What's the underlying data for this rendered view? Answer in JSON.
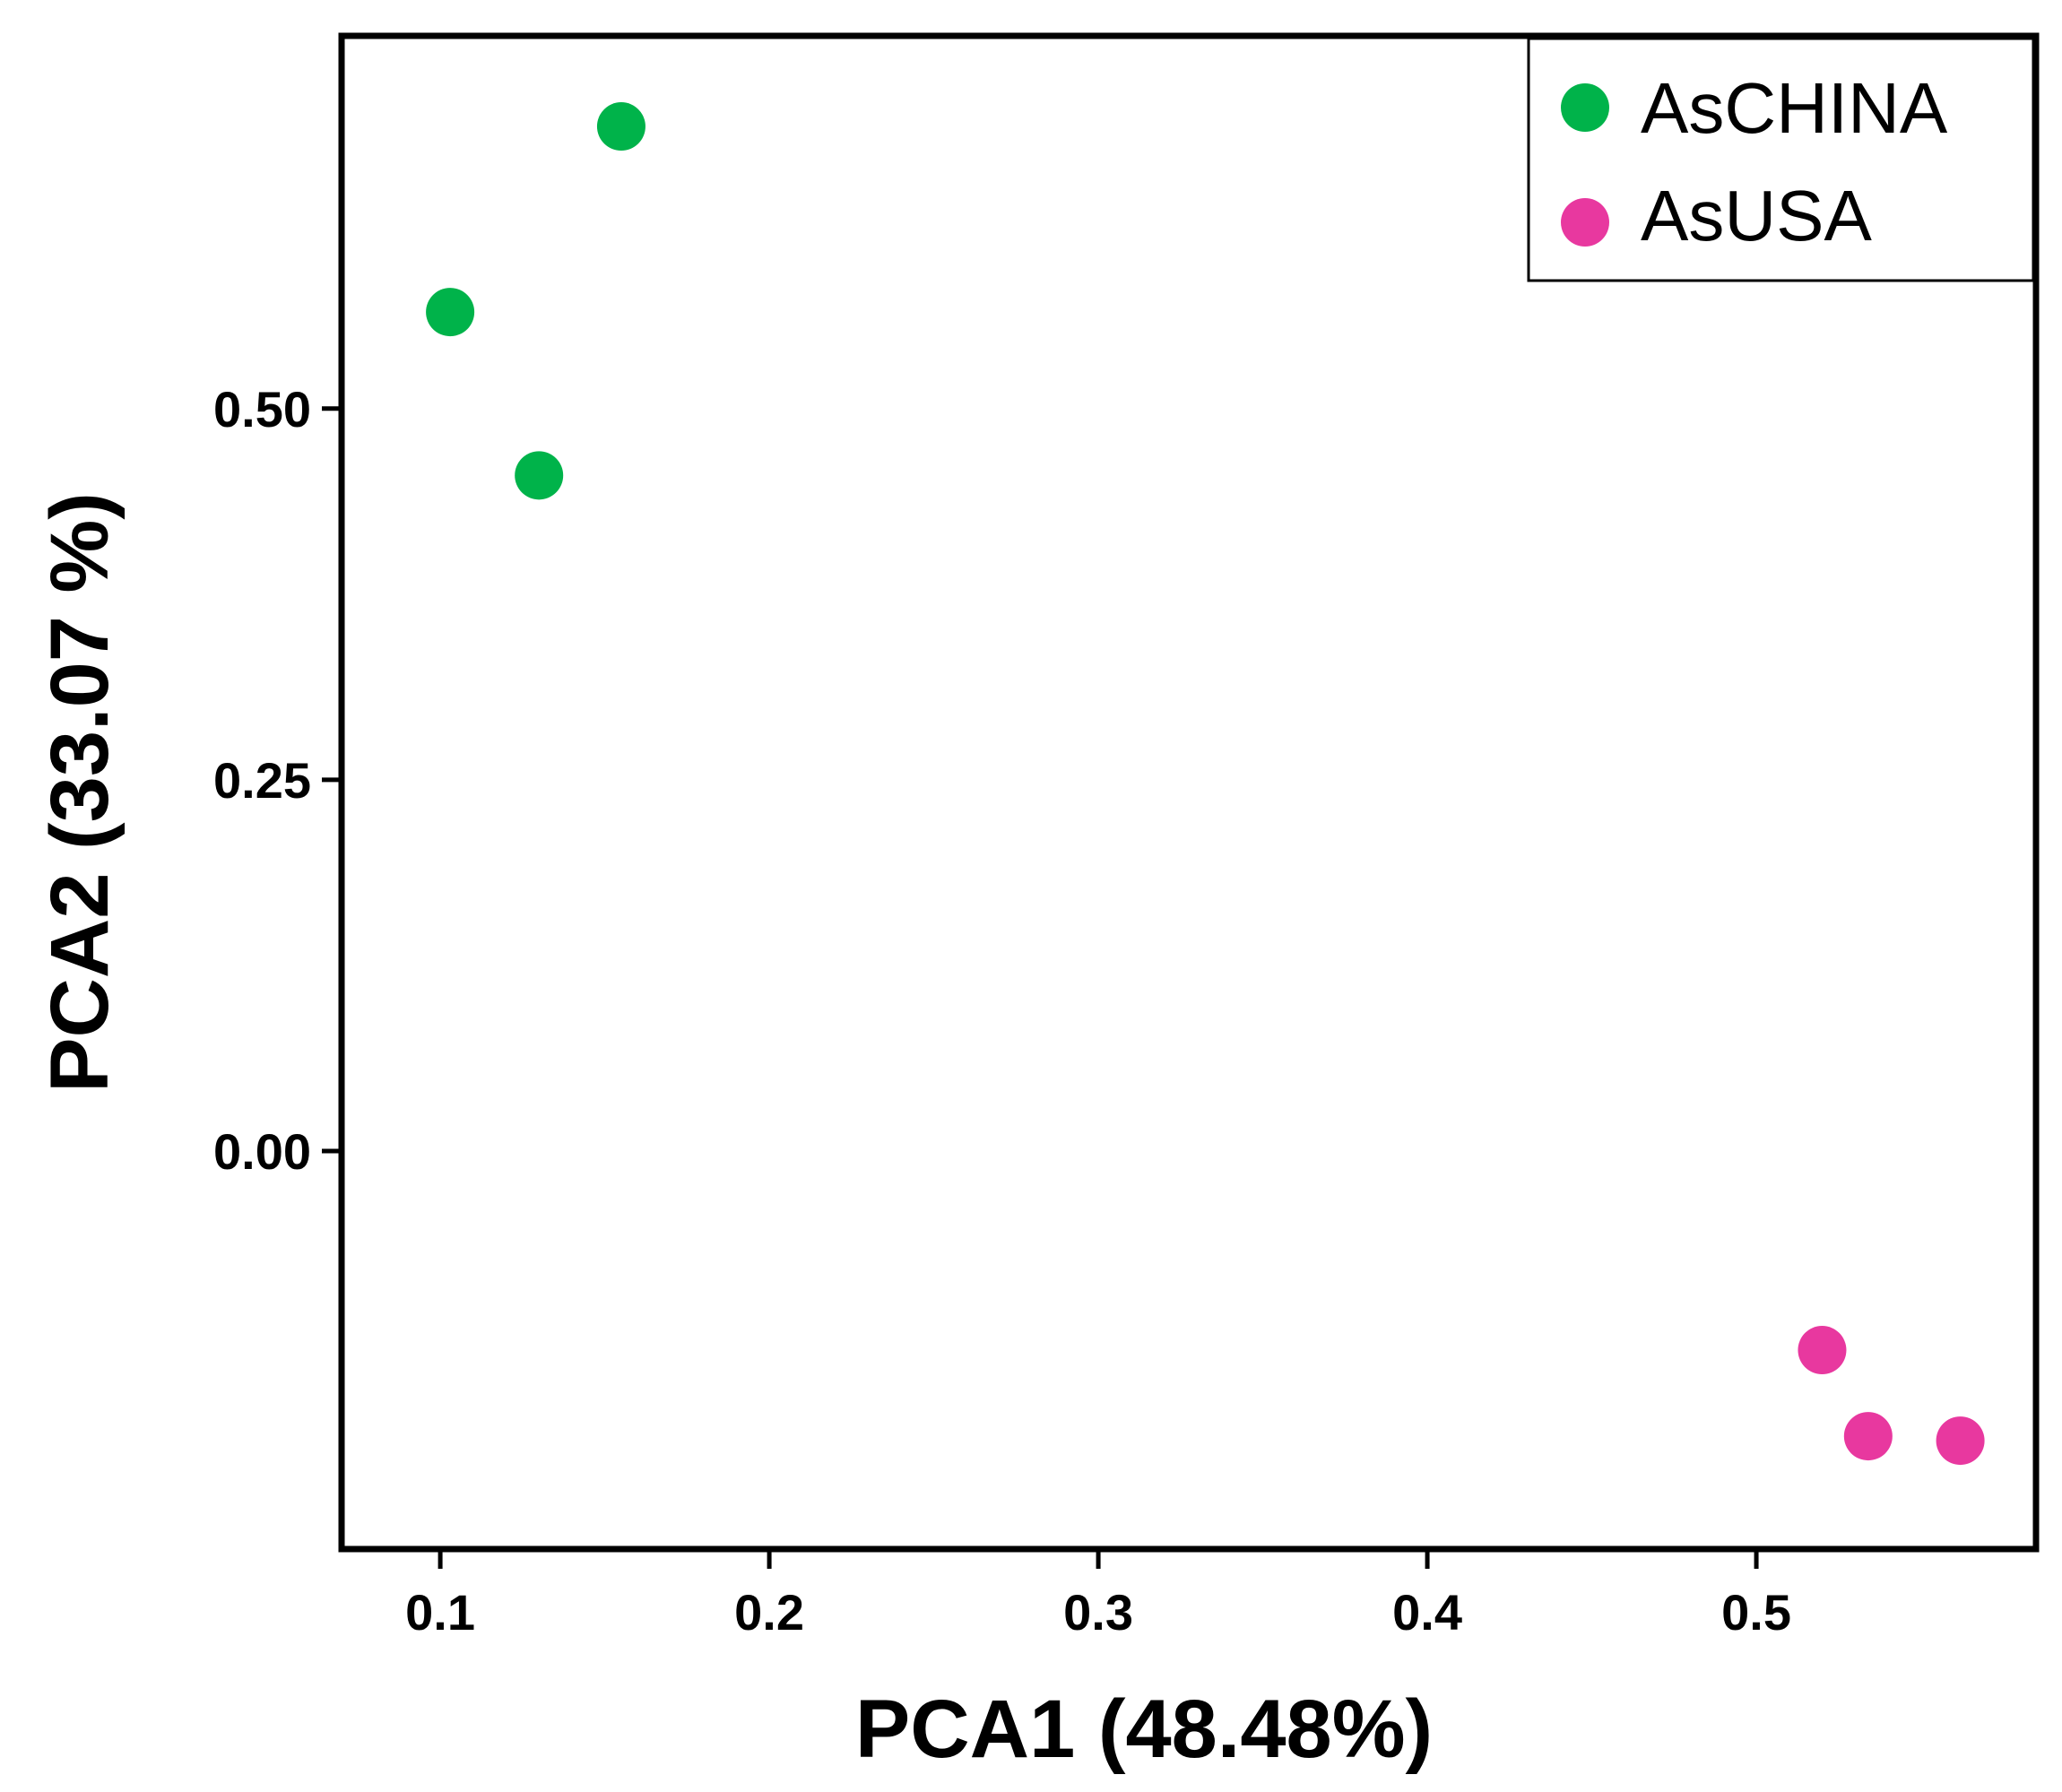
{
  "chart_data": {
    "type": "scatter",
    "xlabel": "PCA1 (48.48%)",
    "ylabel": "PCA2 (33.07 %)",
    "xlim": [
      0.07,
      0.585
    ],
    "ylim": [
      -0.268,
      0.751
    ],
    "xticks": [
      {
        "value": 0.1,
        "label": "0.1"
      },
      {
        "value": 0.2,
        "label": "0.2"
      },
      {
        "value": 0.3,
        "label": "0.3"
      },
      {
        "value": 0.4,
        "label": "0.4"
      },
      {
        "value": 0.5,
        "label": "0.5"
      }
    ],
    "yticks": [
      {
        "value": 0.5,
        "label": "0.50"
      },
      {
        "value": 0.25,
        "label": "0.25"
      },
      {
        "value": 0.0,
        "label": "0.00"
      }
    ],
    "legend_position": "top-right",
    "series": [
      {
        "name": "AsCHINA",
        "color": "#00b34a",
        "points": [
          {
            "x": 0.155,
            "y": 0.69
          },
          {
            "x": 0.103,
            "y": 0.565
          },
          {
            "x": 0.13,
            "y": 0.455
          }
        ]
      },
      {
        "name": "AsUSA",
        "color": "#e8389f",
        "points": [
          {
            "x": 0.52,
            "y": -0.134
          },
          {
            "x": 0.534,
            "y": -0.192
          },
          {
            "x": 0.562,
            "y": -0.195
          }
        ]
      }
    ]
  }
}
